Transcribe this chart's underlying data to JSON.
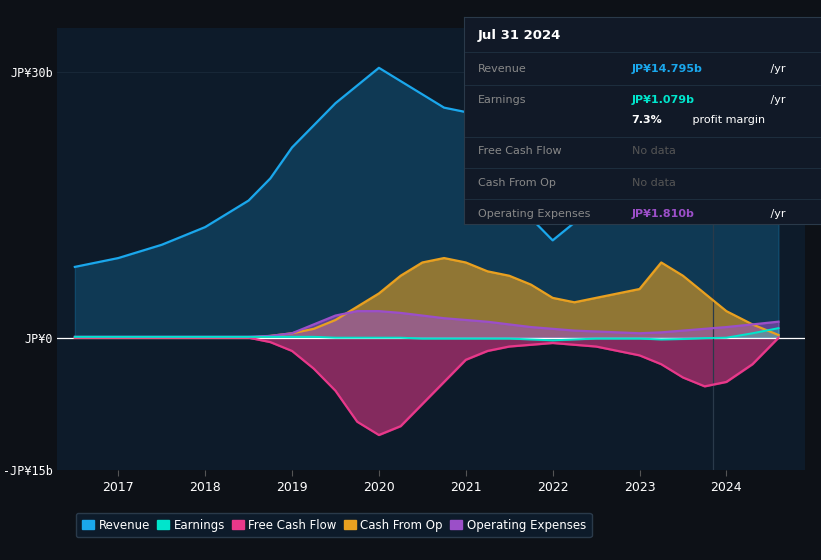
{
  "bg_color": "#0d1117",
  "plot_bg_color": "#0d1b2a",
  "info_box_color": "#111927",
  "grid_color": "#1a2a3a",
  "years": [
    2016.5,
    2017.0,
    2017.5,
    2018.0,
    2018.5,
    2018.75,
    2019.0,
    2019.25,
    2019.5,
    2019.75,
    2020.0,
    2020.25,
    2020.5,
    2020.75,
    2021.0,
    2021.25,
    2021.5,
    2021.75,
    2022.0,
    2022.25,
    2022.5,
    2022.75,
    2023.0,
    2023.25,
    2023.5,
    2023.75,
    2024.0,
    2024.3,
    2024.6
  ],
  "revenue": [
    8.0,
    9.0,
    10.5,
    12.5,
    15.5,
    18.0,
    21.5,
    24.0,
    26.5,
    28.5,
    30.5,
    29.0,
    27.5,
    26.0,
    25.5,
    22.0,
    17.5,
    13.5,
    11.0,
    13.0,
    16.5,
    18.5,
    20.5,
    23.5,
    21.5,
    18.5,
    16.5,
    15.0,
    14.8
  ],
  "earnings": [
    0.1,
    0.1,
    0.1,
    0.1,
    0.1,
    0.1,
    0.1,
    0.1,
    0.0,
    0.0,
    0.0,
    0.0,
    -0.1,
    -0.1,
    -0.1,
    -0.1,
    -0.1,
    -0.2,
    -0.3,
    -0.2,
    -0.1,
    -0.1,
    -0.1,
    -0.2,
    -0.15,
    -0.05,
    0.0,
    0.5,
    1.08
  ],
  "free_cash_flow": [
    0.0,
    0.0,
    0.0,
    0.0,
    0.0,
    -0.5,
    -1.5,
    -3.5,
    -6.0,
    -9.5,
    -11.0,
    -10.0,
    -7.5,
    -5.0,
    -2.5,
    -1.5,
    -1.0,
    -0.8,
    -0.6,
    -0.8,
    -1.0,
    -1.5,
    -2.0,
    -3.0,
    -4.5,
    -5.5,
    -5.0,
    -3.0,
    0.0
  ],
  "cash_from_op": [
    0.0,
    0.0,
    0.0,
    0.0,
    0.0,
    0.2,
    0.5,
    1.0,
    2.0,
    3.5,
    5.0,
    7.0,
    8.5,
    9.0,
    8.5,
    7.5,
    7.0,
    6.0,
    4.5,
    4.0,
    4.5,
    5.0,
    5.5,
    8.5,
    7.0,
    5.0,
    3.0,
    1.5,
    0.3
  ],
  "operating_exp": [
    0.1,
    0.1,
    0.1,
    0.1,
    0.1,
    0.2,
    0.5,
    1.5,
    2.5,
    3.0,
    3.0,
    2.8,
    2.5,
    2.2,
    2.0,
    1.8,
    1.5,
    1.2,
    1.0,
    0.8,
    0.7,
    0.6,
    0.5,
    0.6,
    0.8,
    1.0,
    1.2,
    1.5,
    1.81
  ],
  "revenue_color": "#1aa7ec",
  "earnings_color": "#00e5cc",
  "free_cash_flow_color": "#e8388a",
  "cash_from_op_color": "#e8a020",
  "operating_exp_color": "#9b4fc8",
  "ylim": [
    -15,
    35
  ],
  "yticks": [
    -15,
    0,
    30
  ],
  "ytick_labels": [
    "-JP¥15b",
    "JP¥0",
    "JP¥30b"
  ],
  "xtick_years": [
    2017,
    2018,
    2019,
    2020,
    2021,
    2022,
    2023,
    2024
  ],
  "xlim_left": 2016.3,
  "xlim_right": 2024.9,
  "vline_x": 2023.85,
  "info_box": {
    "date": "Jul 31 2024",
    "revenue_val": "JP¥14.795b",
    "earnings_val": "JP¥1.079b",
    "profit_margin": "7.3%",
    "fcf_val": "No data",
    "cfo_val": "No data",
    "opex_val": "JP¥1.810b"
  },
  "legend_items": [
    "Revenue",
    "Earnings",
    "Free Cash Flow",
    "Cash From Op",
    "Operating Expenses"
  ],
  "legend_colors": [
    "#1aa7ec",
    "#00e5cc",
    "#e8388a",
    "#e8a020",
    "#9b4fc8"
  ]
}
